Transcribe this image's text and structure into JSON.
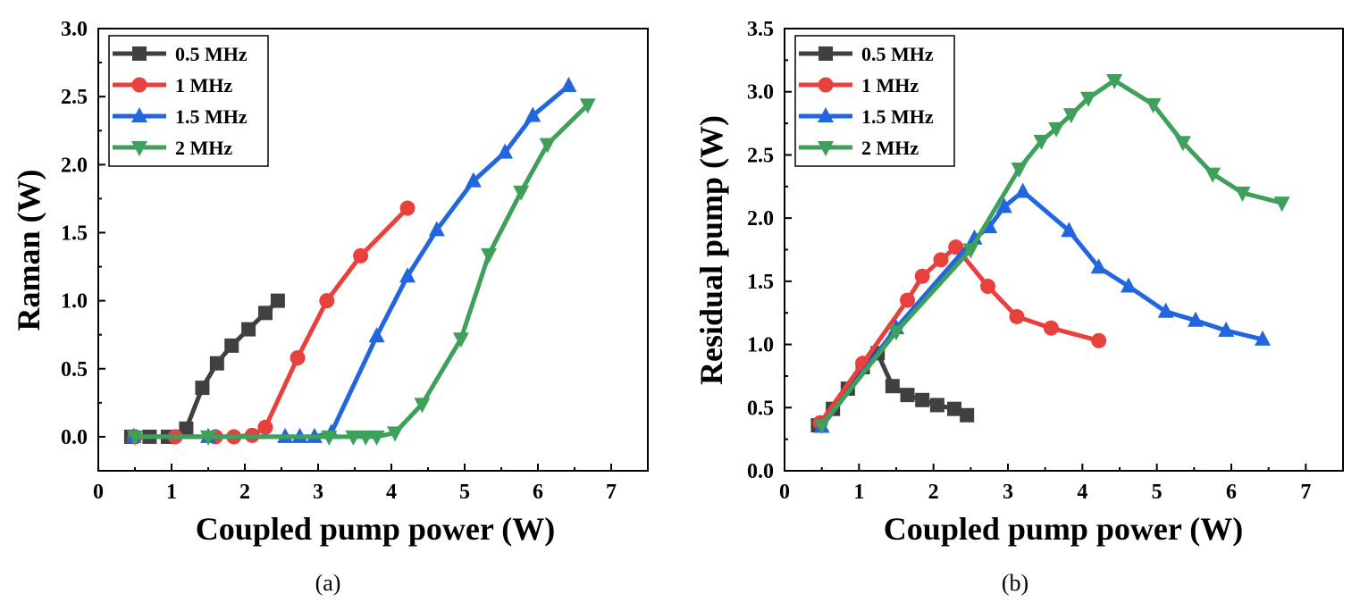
{
  "chart_data": [
    {
      "type": "line",
      "caption": "(a)",
      "xlabel": "Coupled pump power (W)",
      "ylabel": "Raman (W)",
      "xlim": [
        0,
        7.5
      ],
      "ylim": [
        -0.25,
        3.0
      ],
      "xticks": [
        0,
        1,
        2,
        3,
        4,
        5,
        6,
        7
      ],
      "xtick_labels": [
        "0",
        "1",
        "2",
        "3",
        "4",
        "5",
        "6",
        "7"
      ],
      "yticks": [
        0.0,
        0.5,
        1.0,
        1.5,
        2.0,
        2.5,
        3.0
      ],
      "ytick_labels": [
        "0.0",
        "0.5",
        "1.0",
        "1.5",
        "2.0",
        "2.5",
        "3.0"
      ],
      "legend_position": "top-left",
      "series": [
        {
          "name": "0.5 MHz",
          "color": "#404040",
          "marker": "square",
          "x": [
            0.45,
            0.7,
            0.95,
            1.2,
            1.42,
            1.62,
            1.82,
            2.05,
            2.28,
            2.45
          ],
          "y": [
            0.0,
            0.0,
            0.0,
            0.06,
            0.36,
            0.54,
            0.67,
            0.79,
            0.91,
            1.0
          ]
        },
        {
          "name": "1 MHz",
          "color": "#e8403c",
          "marker": "circle",
          "x": [
            0.5,
            1.05,
            1.6,
            1.85,
            2.1,
            2.28,
            2.72,
            3.12,
            3.58,
            4.22
          ],
          "y": [
            0.0,
            0.0,
            0.0,
            0.0,
            0.01,
            0.07,
            0.58,
            1.0,
            1.33,
            1.68
          ]
        },
        {
          "name": "1.5 MHz",
          "color": "#2266dd",
          "marker": "triangle-up",
          "x": [
            0.48,
            1.5,
            2.55,
            2.75,
            2.95,
            3.18,
            3.8,
            4.22,
            4.62,
            5.12,
            5.55,
            5.93,
            6.42
          ],
          "y": [
            0.0,
            0.0,
            0.0,
            0.0,
            0.0,
            0.03,
            0.74,
            1.18,
            1.52,
            1.88,
            2.09,
            2.36,
            2.58
          ]
        },
        {
          "name": "2 MHz",
          "color": "#3ea05a",
          "marker": "triangle-down",
          "x": [
            0.5,
            1.5,
            3.15,
            3.48,
            3.65,
            3.8,
            4.05,
            4.42,
            4.95,
            5.33,
            5.77,
            6.13,
            6.68
          ],
          "y": [
            0.0,
            0.0,
            0.0,
            0.0,
            0.0,
            0.0,
            0.03,
            0.24,
            0.72,
            1.34,
            1.8,
            2.15,
            2.44
          ]
        }
      ]
    },
    {
      "type": "line",
      "caption": "(b)",
      "xlabel": "Coupled pump power (W)",
      "ylabel": "Residual pump (W)",
      "xlim": [
        0,
        7.5
      ],
      "ylim": [
        0.0,
        3.5
      ],
      "xticks": [
        0,
        1,
        2,
        3,
        4,
        5,
        6,
        7
      ],
      "xtick_labels": [
        "0",
        "1",
        "2",
        "3",
        "4",
        "5",
        "6",
        "7"
      ],
      "yticks": [
        0.0,
        0.5,
        1.0,
        1.5,
        2.0,
        2.5,
        3.0,
        3.5
      ],
      "ytick_labels": [
        "0.0",
        "0.5",
        "1.0",
        "1.5",
        "2.0",
        "2.5",
        "3.0",
        "3.5"
      ],
      "legend_position": "top-left",
      "series": [
        {
          "name": "0.5 MHz",
          "color": "#404040",
          "marker": "square",
          "x": [
            0.45,
            0.65,
            0.85,
            1.05,
            1.25,
            1.45,
            1.65,
            1.85,
            2.05,
            2.28,
            2.45
          ],
          "y": [
            0.36,
            0.49,
            0.65,
            0.82,
            0.93,
            0.67,
            0.6,
            0.56,
            0.52,
            0.49,
            0.44
          ]
        },
        {
          "name": "1 MHz",
          "color": "#e8403c",
          "marker": "circle",
          "x": [
            0.48,
            1.05,
            1.65,
            1.85,
            2.1,
            2.3,
            2.73,
            3.12,
            3.58,
            4.22
          ],
          "y": [
            0.38,
            0.85,
            1.35,
            1.54,
            1.67,
            1.77,
            1.46,
            1.22,
            1.13,
            1.03
          ]
        },
        {
          "name": "1.5 MHz",
          "color": "#2266dd",
          "marker": "triangle-up",
          "x": [
            0.5,
            1.5,
            2.55,
            2.75,
            2.95,
            3.2,
            3.82,
            4.22,
            4.62,
            5.12,
            5.52,
            5.93,
            6.42
          ],
          "y": [
            0.35,
            1.13,
            1.84,
            1.93,
            2.09,
            2.21,
            1.9,
            1.61,
            1.46,
            1.26,
            1.19,
            1.11,
            1.04
          ]
        },
        {
          "name": "2 MHz",
          "color": "#3ea05a",
          "marker": "triangle-down",
          "x": [
            0.5,
            1.5,
            2.5,
            3.15,
            3.45,
            3.65,
            3.85,
            4.08,
            4.43,
            4.95,
            5.35,
            5.75,
            6.15,
            6.68
          ],
          "y": [
            0.36,
            1.1,
            1.75,
            2.39,
            2.61,
            2.71,
            2.82,
            2.95,
            3.09,
            2.9,
            2.6,
            2.35,
            2.2,
            2.12
          ]
        }
      ]
    }
  ]
}
